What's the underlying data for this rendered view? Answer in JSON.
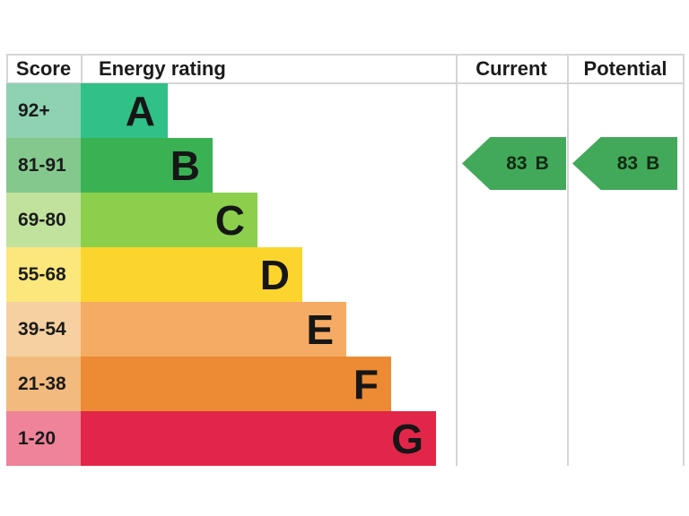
{
  "header": {
    "score_label": "Score",
    "energy_rating_label": "Energy rating",
    "current_label": "Current",
    "potential_label": "Potential"
  },
  "chart_data": {
    "type": "bar",
    "title": "Energy efficiency rating (EPC) band chart",
    "categories": [
      "A",
      "B",
      "C",
      "D",
      "E",
      "F",
      "G"
    ],
    "bands": [
      {
        "letter": "A",
        "score_range": "92+",
        "color": "#2fc186",
        "tint": "#8fd2b2"
      },
      {
        "letter": "B",
        "score_range": "81-91",
        "color": "#3ab254",
        "tint": "#84c88e"
      },
      {
        "letter": "C",
        "score_range": "69-80",
        "color": "#8ccf4d",
        "tint": "#c0e29d"
      },
      {
        "letter": "D",
        "score_range": "55-68",
        "color": "#fbd52e",
        "tint": "#fce77c"
      },
      {
        "letter": "E",
        "score_range": "39-54",
        "color": "#f5ab63",
        "tint": "#f6d0a0"
      },
      {
        "letter": "F",
        "score_range": "21-38",
        "color": "#ec8b33",
        "tint": "#f2ba7d"
      },
      {
        "letter": "G",
        "score_range": "1-20",
        "color": "#e22649",
        "tint": "#ee8399"
      }
    ],
    "current": {
      "score": "83",
      "band": "B",
      "arrow_color": "#42a95a"
    },
    "potential": {
      "score": "83",
      "band": "B",
      "arrow_color": "#42a95a"
    },
    "legend_position": "none",
    "grid": "column-separators-only"
  }
}
